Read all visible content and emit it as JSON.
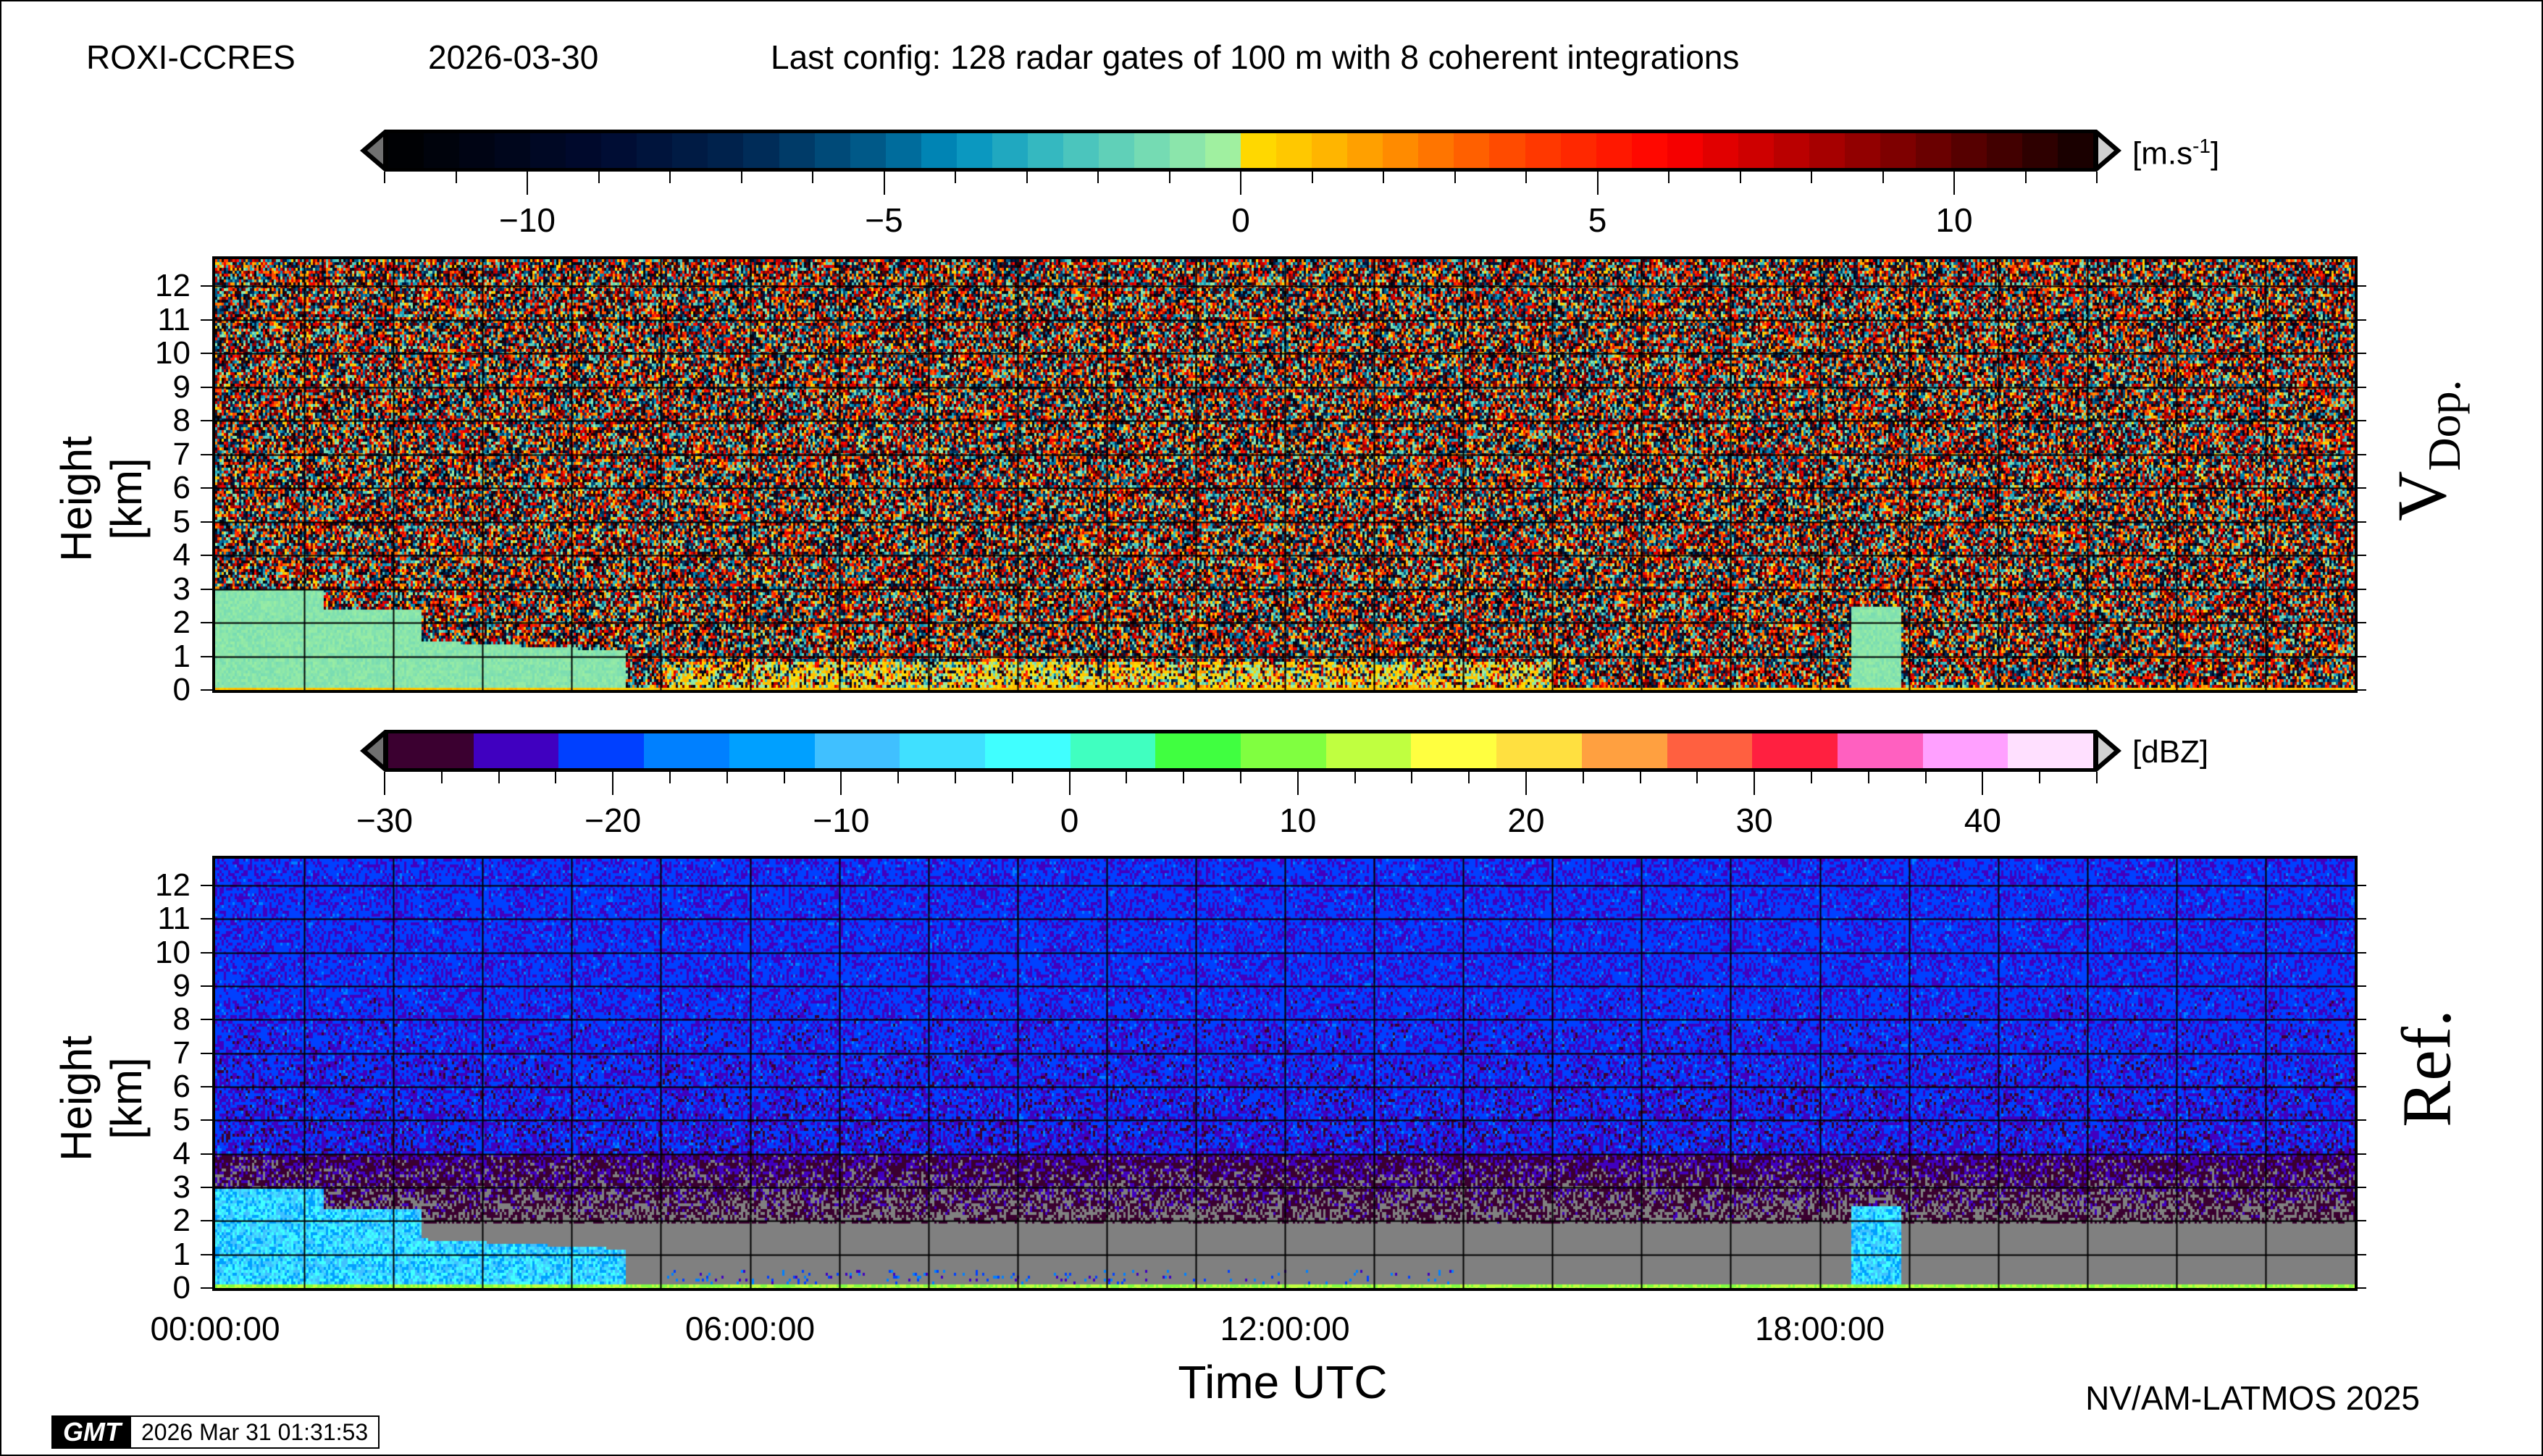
{
  "header": {
    "station": "ROXI-CCRES",
    "date": "2026-03-30",
    "config": "Last config: 128 radar gates of 100 m with 8 coherent integrations"
  },
  "colorbars": {
    "velocity": {
      "unit_base": "[m.s",
      "unit_exp": "-1",
      "unit_close": "]",
      "range": [
        -12,
        12
      ],
      "bins": 48,
      "tick_labels": [
        "−10",
        "−5",
        "0",
        "5",
        "10"
      ],
      "tick_values": [
        -10,
        -5,
        0,
        5,
        10
      ],
      "minor_step": 1,
      "stops": [
        [
          -12,
          "#000000"
        ],
        [
          -9,
          "#000a30"
        ],
        [
          -7,
          "#002550"
        ],
        [
          -5,
          "#006090"
        ],
        [
          -4,
          "#0090c0"
        ],
        [
          -2.5,
          "#40c0c0"
        ],
        [
          -1,
          "#80e0b0"
        ],
        [
          -0.25,
          "#a0f0a0"
        ],
        [
          0,
          "#ffe000"
        ],
        [
          1,
          "#ffc000"
        ],
        [
          2.5,
          "#ff8000"
        ],
        [
          4,
          "#ff4000"
        ],
        [
          6,
          "#ff0000"
        ],
        [
          8,
          "#b00000"
        ],
        [
          10,
          "#600000"
        ],
        [
          12,
          "#100000"
        ]
      ],
      "below_color": "#707070",
      "above_color": "#d0d0d0"
    },
    "reflectivity": {
      "unit": "[dBZ]",
      "range": [
        -30,
        45
      ],
      "tick_labels": [
        "−30",
        "−20",
        "−10",
        "0",
        "10",
        "20",
        "30",
        "40"
      ],
      "tick_values": [
        -30,
        -20,
        -10,
        0,
        10,
        20,
        30,
        40
      ],
      "minor_step": 2.5,
      "colors": [
        "#3b0030",
        "#4000c0",
        "#0040ff",
        "#0080ff",
        "#00a0ff",
        "#40c0ff",
        "#40e0ff",
        "#40ffff",
        "#40ffc0",
        "#40ff40",
        "#80ff40",
        "#c0ff40",
        "#ffff40",
        "#ffe040",
        "#ffa040",
        "#ff6040",
        "#ff2040",
        "#ff60c0",
        "#ffa0ff",
        "#ffe0ff"
      ],
      "below_color": "#707070",
      "above_color": "#d0d0d0",
      "no_signal_color": "#808080"
    }
  },
  "chart_data": [
    {
      "type": "heatmap",
      "panel_label": "V",
      "panel_label_sub": "Dop.",
      "ylabel": "Height [km]",
      "ylim": [
        0,
        12.8
      ],
      "yticks": [
        "0",
        "1",
        "2",
        "3",
        "4",
        "5",
        "6",
        "7",
        "8",
        "9",
        "10",
        "11",
        "12"
      ],
      "xlim_hours": [
        0,
        24
      ],
      "grid": true,
      "colorbar": "velocity"
    },
    {
      "type": "heatmap",
      "panel_label": "Ref.",
      "ylabel": "Height [km]",
      "xlabel": "Time UTC",
      "ylim": [
        0,
        12.8
      ],
      "yticks": [
        "0",
        "1",
        "2",
        "3",
        "4",
        "5",
        "6",
        "7",
        "8",
        "9",
        "10",
        "11",
        "12"
      ],
      "xlim_hours": [
        0,
        24
      ],
      "xticks": [
        "00:00:00",
        "06:00:00",
        "12:00:00",
        "18:00:00"
      ],
      "xtick_hours": [
        0,
        6,
        12,
        18
      ],
      "grid": true,
      "colorbar": "reflectivity"
    }
  ],
  "footer": {
    "credit": "NV/AM-LATMOS 2025",
    "gmt_logo": "GMT",
    "timestamp": "2026 Mar 31 01:31:53"
  }
}
